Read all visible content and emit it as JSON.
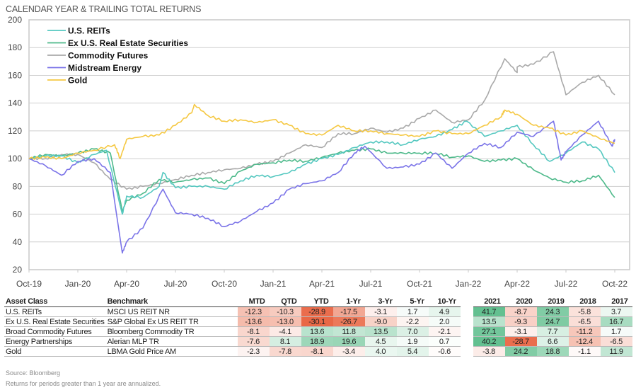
{
  "title": "CALENDAR YEAR & TRAILING TOTAL RETURNS",
  "chart_data": {
    "type": "line",
    "ylim": [
      20,
      200
    ],
    "yticks": [
      "20",
      "40",
      "60",
      "80",
      "100",
      "120",
      "140",
      "160",
      "180",
      "200"
    ],
    "xticks": [
      "Oct-19",
      "Jan-20",
      "Apr-20",
      "Jul-20",
      "Oct-20",
      "Jan-21",
      "Apr-21",
      "Jul-21",
      "Oct-21",
      "Jan-22",
      "Apr-22",
      "Jul-22",
      "Oct-22"
    ],
    "grid": true,
    "legend": "top-left",
    "series": [
      {
        "name": "U.S. REITs",
        "color": "#55c8c0",
        "points": [
          [
            "2019-10",
            100
          ],
          [
            "2019-11",
            102
          ],
          [
            "2019-12",
            102
          ],
          [
            "2020-01",
            97
          ],
          [
            "2020-02",
            103
          ],
          [
            "2020-02-24",
            106
          ],
          [
            "2020-03-23",
            60
          ],
          [
            "2020-04",
            73
          ],
          [
            "2020-05",
            72
          ],
          [
            "2020-06-08",
            90
          ],
          [
            "2020-06",
            80
          ],
          [
            "2020-07",
            79
          ],
          [
            "2020-08",
            80
          ],
          [
            "2020-09",
            80
          ],
          [
            "2020-10",
            78
          ],
          [
            "2020-11",
            84
          ],
          [
            "2020-12",
            88
          ],
          [
            "2021-01",
            87
          ],
          [
            "2021-02",
            90
          ],
          [
            "2021-03",
            96
          ],
          [
            "2021-04",
            100
          ],
          [
            "2021-05",
            103
          ],
          [
            "2021-06",
            108
          ],
          [
            "2021-07",
            112
          ],
          [
            "2021-08",
            112
          ],
          [
            "2021-09",
            110
          ],
          [
            "2021-10",
            114
          ],
          [
            "2021-11",
            116
          ],
          [
            "2021-12",
            121
          ],
          [
            "2021-12-28",
            127
          ],
          [
            "2022-02",
            116
          ],
          [
            "2022-03",
            120
          ],
          [
            "2022-04",
            124
          ],
          [
            "2022-05",
            110
          ],
          [
            "2022-06",
            98
          ],
          [
            "2022-07",
            104
          ],
          [
            "2022-08",
            112
          ],
          [
            "2022-09",
            107
          ],
          [
            "2022-10",
            90
          ]
        ]
      },
      {
        "name": "Ex U.S. Real Estate Securities",
        "color": "#4db98a",
        "points": [
          [
            "2019-10",
            100
          ],
          [
            "2019-11",
            103
          ],
          [
            "2019-12",
            102
          ],
          [
            "2020-01",
            104
          ],
          [
            "2020-02",
            107
          ],
          [
            "2020-03",
            104
          ],
          [
            "2020-03-23",
            62
          ],
          [
            "2020-04",
            70
          ],
          [
            "2020-05",
            75
          ],
          [
            "2020-06",
            85
          ],
          [
            "2020-07",
            83
          ],
          [
            "2020-08",
            85
          ],
          [
            "2020-09",
            86
          ],
          [
            "2020-10",
            82
          ],
          [
            "2020-11",
            91
          ],
          [
            "2020-12",
            96
          ],
          [
            "2021-01",
            97
          ],
          [
            "2021-02",
            99
          ],
          [
            "2021-03",
            98
          ],
          [
            "2021-04",
            101
          ],
          [
            "2021-05",
            104
          ],
          [
            "2021-06",
            106
          ],
          [
            "2021-07",
            107
          ],
          [
            "2021-08",
            104
          ],
          [
            "2021-09",
            104
          ],
          [
            "2021-10",
            104
          ],
          [
            "2021-11",
            104
          ],
          [
            "2021-12",
            101
          ],
          [
            "2022-01",
            102
          ],
          [
            "2022-02",
            98
          ],
          [
            "2022-03",
            99
          ],
          [
            "2022-04",
            100
          ],
          [
            "2022-05",
            92
          ],
          [
            "2022-06",
            86
          ],
          [
            "2022-07",
            83
          ],
          [
            "2022-08",
            84
          ],
          [
            "2022-09",
            88
          ],
          [
            "2022-10",
            72
          ]
        ]
      },
      {
        "name": "Commodity Futures",
        "color": "#a9a9a9",
        "points": [
          [
            "2019-10",
            100
          ],
          [
            "2019-11",
            100
          ],
          [
            "2019-12",
            103
          ],
          [
            "2020-01",
            103
          ],
          [
            "2020-02",
            97
          ],
          [
            "2020-03",
            85
          ],
          [
            "2020-04",
            78
          ],
          [
            "2020-05",
            80
          ],
          [
            "2020-06",
            82
          ],
          [
            "2020-07",
            85
          ],
          [
            "2020-08",
            88
          ],
          [
            "2020-09",
            90
          ],
          [
            "2020-10",
            92
          ],
          [
            "2020-11",
            93
          ],
          [
            "2020-12",
            96
          ],
          [
            "2021-01",
            98
          ],
          [
            "2021-02",
            104
          ],
          [
            "2021-03",
            110
          ],
          [
            "2021-04",
            108
          ],
          [
            "2021-05",
            118
          ],
          [
            "2021-06",
            118
          ],
          [
            "2021-07",
            122
          ],
          [
            "2021-08",
            119
          ],
          [
            "2021-09",
            122
          ],
          [
            "2021-10",
            129
          ],
          [
            "2021-11",
            135
          ],
          [
            "2021-12",
            126
          ],
          [
            "2022-01",
            128
          ],
          [
            "2022-02",
            142
          ],
          [
            "2022-03-08",
            172
          ],
          [
            "2022-03-31",
            162
          ],
          [
            "2022-04",
            166
          ],
          [
            "2022-05",
            168
          ],
          [
            "2022-06-08",
            177
          ],
          [
            "2022-07",
            146
          ],
          [
            "2022-08",
            155
          ],
          [
            "2022-09",
            160
          ],
          [
            "2022-10",
            146
          ]
        ]
      },
      {
        "name": "Midstream Energy",
        "color": "#7b74e8",
        "points": [
          [
            "2019-10",
            100
          ],
          [
            "2019-11",
            95
          ],
          [
            "2019-12",
            88
          ],
          [
            "2020-01",
            98
          ],
          [
            "2020-02",
            100
          ],
          [
            "2020-03",
            90
          ],
          [
            "2020-03-23",
            32
          ],
          [
            "2020-04",
            40
          ],
          [
            "2020-05",
            50
          ],
          [
            "2020-06-08",
            78
          ],
          [
            "2020-07",
            61
          ],
          [
            "2020-08",
            60
          ],
          [
            "2020-09",
            57
          ],
          [
            "2020-10",
            51
          ],
          [
            "2020-11",
            55
          ],
          [
            "2020-12",
            62
          ],
          [
            "2021-01",
            68
          ],
          [
            "2021-02",
            78
          ],
          [
            "2021-03",
            82
          ],
          [
            "2021-04",
            84
          ],
          [
            "2021-05",
            90
          ],
          [
            "2021-06",
            104
          ],
          [
            "2021-06-20",
            109
          ],
          [
            "2021-08",
            93
          ],
          [
            "2021-09",
            94
          ],
          [
            "2021-10",
            96
          ],
          [
            "2021-11",
            104
          ],
          [
            "2021-12",
            93
          ],
          [
            "2022-01",
            104
          ],
          [
            "2022-02",
            111
          ],
          [
            "2022-03",
            108
          ],
          [
            "2022-04",
            119
          ],
          [
            "2022-05",
            116
          ],
          [
            "2022-06-08",
            127
          ],
          [
            "2022-06-22",
            99
          ],
          [
            "2022-07",
            105
          ],
          [
            "2022-08",
            117
          ],
          [
            "2022-09",
            127
          ],
          [
            "2022-09-26",
            109
          ],
          [
            "2022-10",
            114
          ]
        ]
      },
      {
        "name": "Gold",
        "color": "#f5c842",
        "points": [
          [
            "2019-10",
            100
          ],
          [
            "2019-11",
            101
          ],
          [
            "2019-12",
            100
          ],
          [
            "2020-01",
            104
          ],
          [
            "2020-02",
            106
          ],
          [
            "2020-03-09",
            110
          ],
          [
            "2020-03-19",
            100
          ],
          [
            "2020-04",
            114
          ],
          [
            "2020-05",
            116
          ],
          [
            "2020-06",
            117
          ],
          [
            "2020-07",
            124
          ],
          [
            "2020-08-06",
            139
          ],
          [
            "2020-08",
            133
          ],
          [
            "2020-09",
            131
          ],
          [
            "2020-10",
            127
          ],
          [
            "2020-11",
            128
          ],
          [
            "2020-12",
            126
          ],
          [
            "2021-01",
            128
          ],
          [
            "2021-02",
            124
          ],
          [
            "2021-03",
            118
          ],
          [
            "2021-04",
            117
          ],
          [
            "2021-05",
            124
          ],
          [
            "2021-06",
            120
          ],
          [
            "2021-07",
            120
          ],
          [
            "2021-08",
            118
          ],
          [
            "2021-09",
            117
          ],
          [
            "2021-10",
            116
          ],
          [
            "2021-11",
            120
          ],
          [
            "2021-12",
            118
          ],
          [
            "2022-01",
            118
          ],
          [
            "2022-02",
            124
          ],
          [
            "2022-03-08",
            135
          ],
          [
            "2022-03",
            130
          ],
          [
            "2022-04",
            132
          ],
          [
            "2022-05",
            124
          ],
          [
            "2022-06",
            122
          ],
          [
            "2022-07",
            117
          ],
          [
            "2022-08",
            120
          ],
          [
            "2022-09",
            115
          ],
          [
            "2022-10",
            111
          ]
        ]
      }
    ]
  },
  "table": {
    "headers": [
      "Asset Class",
      "Benchmark",
      "MTD",
      "QTD",
      "YTD",
      "1-Yr",
      "3-Yr",
      "5-Yr",
      "10-Yr",
      "2021",
      "2020",
      "2019",
      "2018",
      "2017"
    ],
    "heat_colors": {
      "negative": "#e8603c",
      "positive": "#5bbd8a"
    },
    "rows": [
      {
        "asset": "U.S. REITs",
        "benchmark": "MSCI US REIT NR",
        "values": [
          "-12.3",
          "-10.3",
          "-28.9",
          "-17.5",
          "-3.1",
          "1.7",
          "4.9",
          "41.7",
          "-8.7",
          "24.3",
          "-5.8",
          "3.7"
        ]
      },
      {
        "asset": "Ex U.S. Real Estate Securities",
        "benchmark": "S&P Global Ex US REIT TR",
        "values": [
          "-13.6",
          "-13.0",
          "-30.1",
          "-26.7",
          "-9.0",
          "-2.2",
          "2.0",
          "13.5",
          "-9.3",
          "24.7",
          "-6.5",
          "16.7"
        ]
      },
      {
        "asset": "Broad Commodity Futures",
        "benchmark": "Bloomberg Commodity TR",
        "values": [
          "-8.1",
          "-4.1",
          "13.6",
          "11.8",
          "13.5",
          "7.0",
          "-2.1",
          "27.1",
          "-3.1",
          "7.7",
          "-11.2",
          "1.7"
        ]
      },
      {
        "asset": "Energy Partnerships",
        "benchmark": "Alerian MLP TR",
        "values": [
          "-7.6",
          "8.1",
          "18.9",
          "19.6",
          "4.5",
          "1.9",
          "0.7",
          "40.2",
          "-28.7",
          "6.6",
          "-12.4",
          "-6.5"
        ]
      },
      {
        "asset": "Gold",
        "benchmark": "LBMA Gold Price AM",
        "values": [
          "-2.3",
          "-7.8",
          "-8.1",
          "-3.4",
          "4.0",
          "5.4",
          "-0.6",
          "-3.8",
          "24.2",
          "18.8",
          "-1.1",
          "11.9"
        ]
      }
    ]
  },
  "footer": {
    "source": "Source: Bloomberg",
    "note": "Returns for periods greater than 1 year are annualized."
  }
}
